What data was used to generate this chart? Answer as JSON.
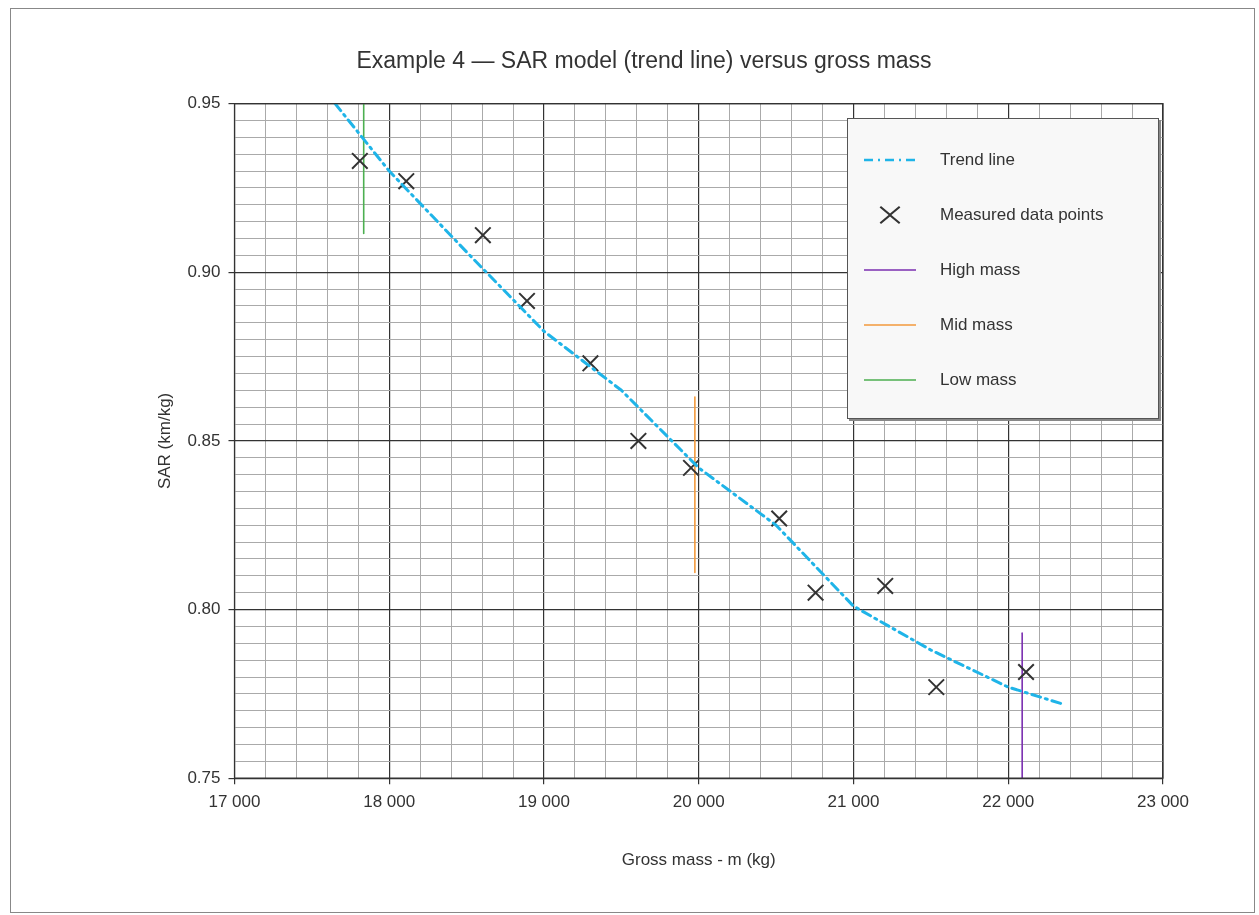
{
  "chart_data": {
    "type": "scatter",
    "title": "Example 4 — SAR model (trend line) versus gross mass",
    "xlabel": "Gross mass - m (kg)",
    "ylabel": "SAR (km/kg)",
    "xlim": [
      17000,
      23000
    ],
    "xticks": [
      {
        "value": 17000,
        "label": "17 000"
      },
      {
        "value": 17200,
        "label": null
      },
      {
        "value": 17400,
        "label": null
      },
      {
        "value": 17600,
        "label": null
      },
      {
        "value": 17800,
        "label": null
      },
      {
        "value": 18000,
        "label": "18 000"
      },
      {
        "value": 18200,
        "label": null
      },
      {
        "value": 18400,
        "label": null
      },
      {
        "value": 18600,
        "label": null
      },
      {
        "value": 18800,
        "label": null
      },
      {
        "value": 19000,
        "label": "19 000"
      },
      {
        "value": 19200,
        "label": null
      },
      {
        "value": 19400,
        "label": null
      },
      {
        "value": 19600,
        "label": null
      },
      {
        "value": 19800,
        "label": null
      },
      {
        "value": 20000,
        "label": "20 000"
      },
      {
        "value": 20200,
        "label": null
      },
      {
        "value": 20400,
        "label": null
      },
      {
        "value": 20600,
        "label": null
      },
      {
        "value": 20800,
        "label": null
      },
      {
        "value": 21000,
        "label": "21 000"
      },
      {
        "value": 21200,
        "label": null
      },
      {
        "value": 21400,
        "label": null
      },
      {
        "value": 21600,
        "label": null
      },
      {
        "value": 21800,
        "label": null
      },
      {
        "value": 22000,
        "label": "22 000"
      },
      {
        "value": 22200,
        "label": null
      },
      {
        "value": 22400,
        "label": null
      },
      {
        "value": 22600,
        "label": null
      },
      {
        "value": 22800,
        "label": null
      },
      {
        "value": 23000,
        "label": "23 000"
      }
    ],
    "ylim": [
      0.75,
      0.95
    ],
    "yticks": [
      0.75,
      {
        "value": 0.755,
        "label": null
      },
      {
        "value": 0.76,
        "label": null
      },
      {
        "value": 0.765,
        "label": null
      },
      {
        "value": 0.77,
        "label": null
      },
      {
        "value": 0.775,
        "label": null
      },
      {
        "value": 0.78,
        "label": null
      },
      {
        "value": 0.785,
        "label": null
      },
      {
        "value": 0.79,
        "label": null
      },
      {
        "value": 0.795,
        "label": null
      },
      {
        "value": 0.8,
        "label": "0.80"
      },
      {
        "value": 0.805,
        "label": null
      },
      {
        "value": 0.81,
        "label": null
      },
      {
        "value": 0.815,
        "label": null
      },
      {
        "value": 0.82,
        "label": null
      },
      {
        "value": 0.825,
        "label": null
      },
      {
        "value": 0.83,
        "label": null
      },
      {
        "value": 0.835,
        "label": null
      },
      {
        "value": 0.84,
        "label": null
      },
      {
        "value": 0.845,
        "label": null
      },
      0.85,
      {
        "value": 0.855,
        "label": null
      },
      {
        "value": 0.86,
        "label": null
      },
      {
        "value": 0.865,
        "label": null
      },
      {
        "value": 0.87,
        "label": null
      },
      {
        "value": 0.875,
        "label": null
      },
      {
        "value": 0.88,
        "label": null
      },
      {
        "value": 0.885,
        "label": null
      },
      {
        "value": 0.89,
        "label": null
      },
      {
        "value": 0.895,
        "label": null
      },
      {
        "value": 0.9,
        "label": "0.90"
      },
      {
        "value": 0.905,
        "label": null
      },
      {
        "value": 0.91,
        "label": null
      },
      {
        "value": 0.915,
        "label": null
      },
      {
        "value": 0.92,
        "label": null
      },
      {
        "value": 0.925,
        "label": null
      },
      {
        "value": 0.93,
        "label": null
      },
      {
        "value": 0.935,
        "label": null
      },
      {
        "value": 0.94,
        "label": null
      },
      {
        "value": 0.945,
        "label": null
      },
      0.95
    ],
    "grid": true,
    "legend": "top right",
    "series": [
      {
        "name": "Trend line",
        "type": "line",
        "color": "#1fb4e8",
        "line_style": "dashed",
        "marker": "none",
        "x": [
          17650,
          18000,
          18500,
          19000,
          19500,
          20000,
          20500,
          21000,
          21500,
          22000,
          22350
        ],
        "values": [
          0.95,
          0.93,
          0.906,
          0.8825,
          0.865,
          0.842,
          0.825,
          0.801,
          0.788,
          0.777,
          0.772
        ]
      },
      {
        "name": "Measured data points",
        "type": "scatter",
        "color": "#333333",
        "marker": "cross",
        "x": [
          17810,
          18110,
          18605,
          18890,
          19300,
          19610,
          19950,
          20520,
          20755,
          21205,
          21535,
          22115
        ],
        "values": [
          0.933,
          0.927,
          0.911,
          0.8915,
          0.873,
          0.85,
          0.842,
          0.827,
          0.805,
          0.807,
          0.777,
          0.7815
        ]
      },
      {
        "name": "High mass",
        "type": "line",
        "color": "#7b2fb0",
        "line_style": "solid",
        "marker": "none",
        "x": [
          22090,
          22090
        ],
        "values": [
          0.75,
          0.793
        ]
      },
      {
        "name": "Mid mass",
        "type": "line",
        "color": "#f39a3c",
        "line_style": "solid",
        "marker": "none",
        "x": [
          19975,
          19975
        ],
        "values": [
          0.811,
          0.863
        ]
      },
      {
        "name": "Low mass",
        "type": "line",
        "color": "#4caf50",
        "line_style": "solid",
        "marker": "none",
        "x": [
          17835,
          17835
        ],
        "values": [
          0.9115,
          0.95
        ]
      }
    ]
  }
}
